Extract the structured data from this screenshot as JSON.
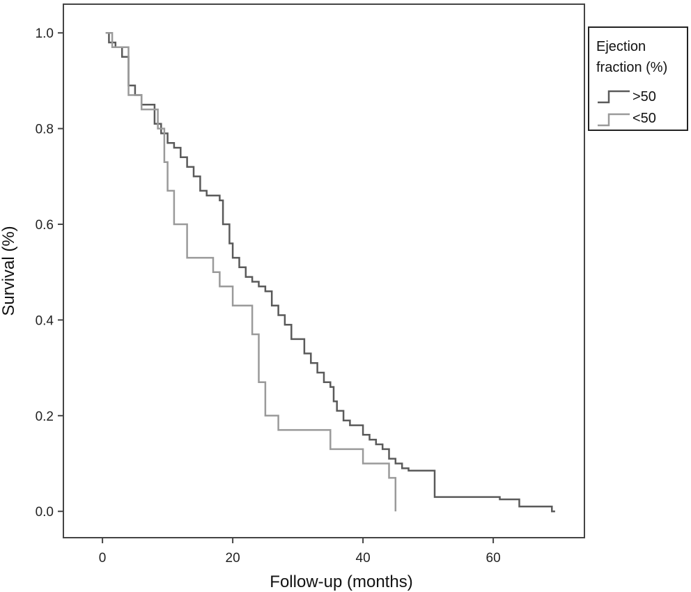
{
  "chart_data": {
    "type": "line",
    "subtype": "kaplan-meier-step",
    "title": "",
    "xlabel": "Follow-up (months)",
    "ylabel": "Survival (%)",
    "xlim": [
      -6,
      74
    ],
    "ylim": [
      -0.055,
      1.06
    ],
    "x_ticks": [
      0,
      20,
      40,
      60
    ],
    "y_ticks": [
      0.0,
      0.2,
      0.4,
      0.6,
      0.8,
      1.0
    ],
    "y_tick_labels": [
      "0.0",
      "0.2",
      "0.4",
      "0.6",
      "0.8",
      "1.0"
    ],
    "grid": false,
    "legend": {
      "position": "right-outside-top",
      "title_lines": [
        "Ejection",
        "fraction (%)"
      ]
    },
    "series": [
      {
        "name": ">50",
        "color": "#5a5a5a",
        "points": [
          [
            0.5,
            1.0
          ],
          [
            1.0,
            0.98
          ],
          [
            2.0,
            0.97
          ],
          [
            3.0,
            0.95
          ],
          [
            4.0,
            0.89
          ],
          [
            5.0,
            0.87
          ],
          [
            6.0,
            0.85
          ],
          [
            8.0,
            0.81
          ],
          [
            9.0,
            0.79
          ],
          [
            10.0,
            0.77
          ],
          [
            11.0,
            0.76
          ],
          [
            12.0,
            0.74
          ],
          [
            13.0,
            0.72
          ],
          [
            14.0,
            0.7
          ],
          [
            15.0,
            0.67
          ],
          [
            16.0,
            0.66
          ],
          [
            18.0,
            0.65
          ],
          [
            18.5,
            0.6
          ],
          [
            19.5,
            0.56
          ],
          [
            20.0,
            0.53
          ],
          [
            21.0,
            0.51
          ],
          [
            22.0,
            0.49
          ],
          [
            23.0,
            0.48
          ],
          [
            24.0,
            0.47
          ],
          [
            25.0,
            0.46
          ],
          [
            26.0,
            0.43
          ],
          [
            27.0,
            0.41
          ],
          [
            28.0,
            0.39
          ],
          [
            29.0,
            0.36
          ],
          [
            31.0,
            0.33
          ],
          [
            32.0,
            0.31
          ],
          [
            33.0,
            0.29
          ],
          [
            34.0,
            0.27
          ],
          [
            35.0,
            0.26
          ],
          [
            35.5,
            0.23
          ],
          [
            36.0,
            0.21
          ],
          [
            37.0,
            0.19
          ],
          [
            38.0,
            0.18
          ],
          [
            40.0,
            0.16
          ],
          [
            41.0,
            0.15
          ],
          [
            42.0,
            0.14
          ],
          [
            43.0,
            0.13
          ],
          [
            44.0,
            0.11
          ],
          [
            45.0,
            0.1
          ],
          [
            46.0,
            0.09
          ],
          [
            47.0,
            0.085
          ],
          [
            51.0,
            0.03
          ],
          [
            61.0,
            0.025
          ],
          [
            64.0,
            0.01
          ],
          [
            69.0,
            0.0
          ]
        ],
        "end_x": 69.5
      },
      {
        "name": "<50",
        "color": "#9a9a9a",
        "points": [
          [
            0.5,
            1.0
          ],
          [
            1.5,
            0.97
          ],
          [
            3.0,
            0.97
          ],
          [
            4.0,
            0.87
          ],
          [
            6.0,
            0.84
          ],
          [
            8.0,
            0.84
          ],
          [
            8.5,
            0.8
          ],
          [
            9.5,
            0.73
          ],
          [
            10.0,
            0.67
          ],
          [
            11.0,
            0.6
          ],
          [
            13.0,
            0.53
          ],
          [
            17.0,
            0.5
          ],
          [
            18.0,
            0.47
          ],
          [
            20.0,
            0.43
          ],
          [
            23.0,
            0.37
          ],
          [
            24.0,
            0.27
          ],
          [
            25.0,
            0.2
          ],
          [
            27.0,
            0.17
          ],
          [
            35.0,
            0.13
          ],
          [
            40.0,
            0.1
          ],
          [
            44.0,
            0.07
          ],
          [
            45.0,
            0.0
          ]
        ],
        "end_x": 45.0
      }
    ]
  }
}
